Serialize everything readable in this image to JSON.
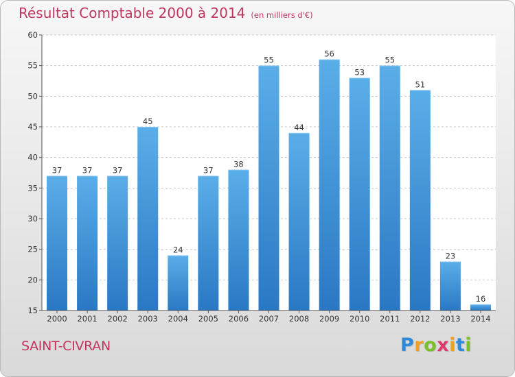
{
  "title": "Résultat Comptable 2000 à 2014",
  "subtitle": "(en milliers d'€)",
  "place": "SAINT-CIVRAN",
  "logo": {
    "text": "Proxiti",
    "letters": [
      {
        "ch": "P",
        "color": "#2e8ad8"
      },
      {
        "ch": "r",
        "color": "#f0a023"
      },
      {
        "ch": "o",
        "color": "#7bbf2a"
      },
      {
        "ch": "x",
        "color": "#e03a6a"
      },
      {
        "ch": "i",
        "color": "#f0a023"
      },
      {
        "ch": "t",
        "color": "#2e8ad8"
      },
      {
        "ch": "i",
        "color": "#7bbf2a"
      }
    ]
  },
  "colors": {
    "bar_top": "#5aaee8",
    "bar_bottom": "#2a78c4",
    "title": "#c0365e",
    "grid": "#c8c8c8",
    "axis": "#555555"
  },
  "chart_data": {
    "type": "bar",
    "categories": [
      "2000",
      "2001",
      "2002",
      "2003",
      "2004",
      "2005",
      "2006",
      "2007",
      "2008",
      "2009",
      "2010",
      "2011",
      "2012",
      "2013",
      "2014"
    ],
    "values": [
      37,
      37,
      37,
      45,
      24,
      37,
      38,
      55,
      44,
      56,
      53,
      55,
      51,
      23,
      16
    ],
    "title": "Résultat Comptable 2000 à 2014",
    "xlabel": "",
    "ylabel": "",
    "ylim": [
      15,
      60
    ],
    "yticks": [
      15,
      20,
      25,
      30,
      35,
      40,
      45,
      50,
      55,
      60
    ],
    "grid": "dashed horizontal",
    "legend": "none"
  }
}
